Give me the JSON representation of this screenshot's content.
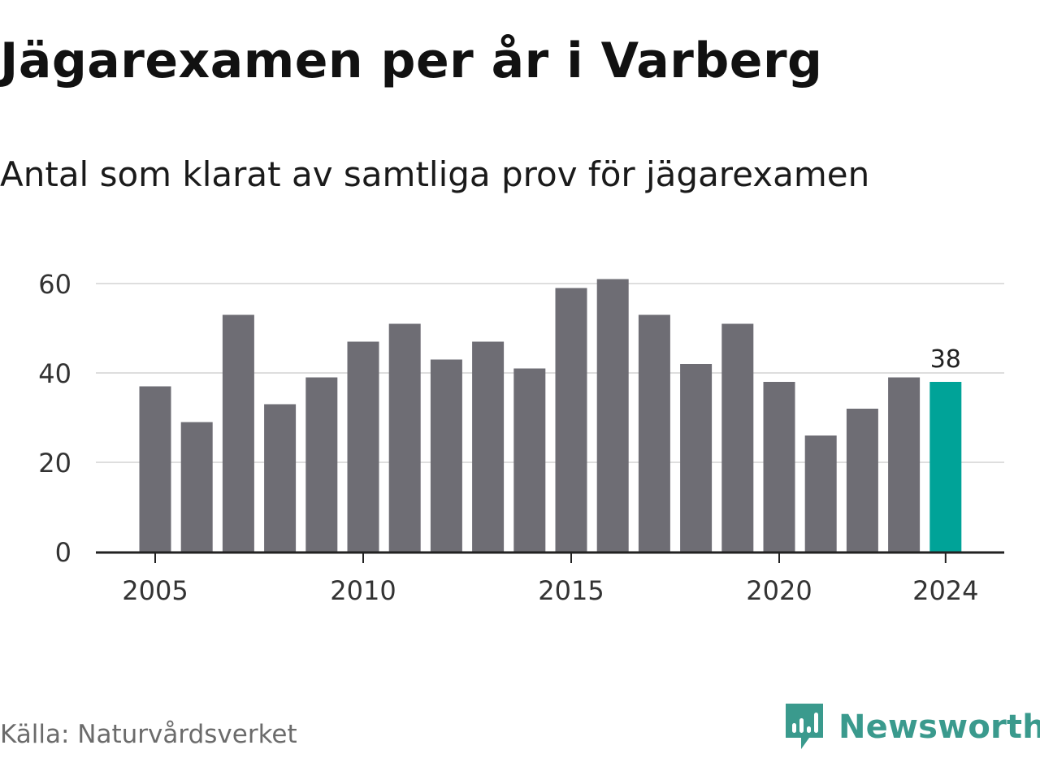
{
  "title": "Jägarexamen per år i Varberg",
  "subtitle": "Antal som klarat av samtliga prov för jägarexamen",
  "source": "Källa: Naturvårdsverket",
  "brand": {
    "name": "Newsworthy",
    "color": "#3a9a8d"
  },
  "colors": {
    "bar": "#6e6d74",
    "highlight": "#00a398",
    "grid": "#dedede",
    "axis": "#222222",
    "tick_text": "#333333",
    "label_text": "#222222"
  },
  "chart_data": {
    "type": "bar",
    "title": "Jägarexamen per år i Varberg",
    "subtitle": "Antal som klarat av samtliga prov för jägarexamen",
    "xlabel": "",
    "ylabel": "",
    "categories": [
      2005,
      2006,
      2007,
      2008,
      2009,
      2010,
      2011,
      2012,
      2013,
      2014,
      2015,
      2016,
      2017,
      2018,
      2019,
      2020,
      2021,
      2022,
      2023,
      2024
    ],
    "values": [
      37,
      29,
      53,
      33,
      39,
      47,
      51,
      43,
      47,
      41,
      59,
      61,
      53,
      42,
      51,
      38,
      26,
      32,
      39,
      38
    ],
    "highlight_index": 19,
    "highlight_label": "38",
    "ylim": [
      0,
      60
    ],
    "yticks": [
      0,
      20,
      40,
      60
    ],
    "xticks": [
      2005,
      2010,
      2015,
      2020,
      2024
    ],
    "grid": "horizontal",
    "legend": "none"
  }
}
